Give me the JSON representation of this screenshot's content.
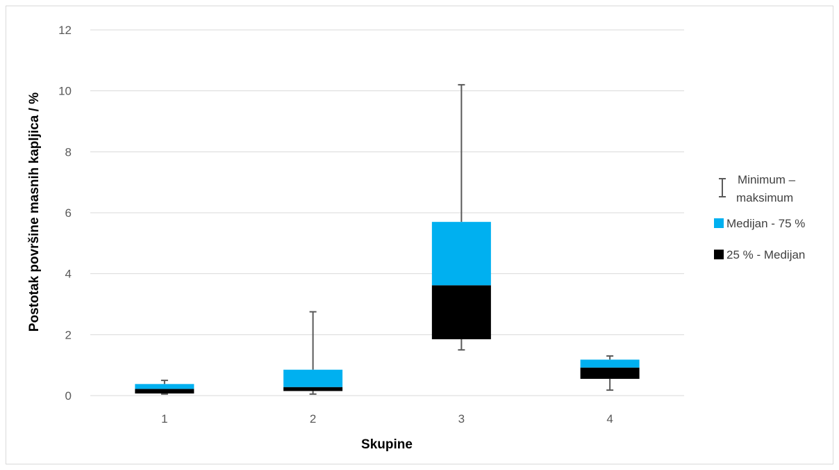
{
  "chart_data": {
    "type": "box",
    "xlabel": "Skupine",
    "ylabel": "Postotak površine masnih kapljica / %",
    "categories": [
      "1",
      "2",
      "3",
      "4"
    ],
    "ylim": [
      0,
      12
    ],
    "yticks": [
      0,
      2,
      4,
      6,
      8,
      10,
      12
    ],
    "grid": true,
    "legend_position": "right",
    "legend": [
      {
        "label": "Minimum –",
        "label2": "maksimum",
        "kind": "whisker",
        "color": "#595959"
      },
      {
        "label": "Medijan - 75 %",
        "kind": "box",
        "color": "#00b0f0"
      },
      {
        "label": "25 % - Medijan",
        "kind": "box",
        "color": "#000000"
      }
    ],
    "series": [
      {
        "category": "1",
        "min": 0.05,
        "q1": 0.07,
        "median": 0.22,
        "q3": 0.38,
        "max": 0.5
      },
      {
        "category": "2",
        "min": 0.05,
        "q1": 0.15,
        "median": 0.28,
        "q3": 0.85,
        "max": 2.75
      },
      {
        "category": "3",
        "min": 1.5,
        "q1": 1.85,
        "median": 3.62,
        "q3": 5.7,
        "max": 10.2
      },
      {
        "category": "4",
        "min": 0.18,
        "q1": 0.55,
        "median": 0.92,
        "q3": 1.18,
        "max": 1.3
      }
    ],
    "colors": {
      "upper_box": "#00b0f0",
      "lower_box": "#000000",
      "whisker": "#595959",
      "grid": "#d9d9d9"
    }
  }
}
